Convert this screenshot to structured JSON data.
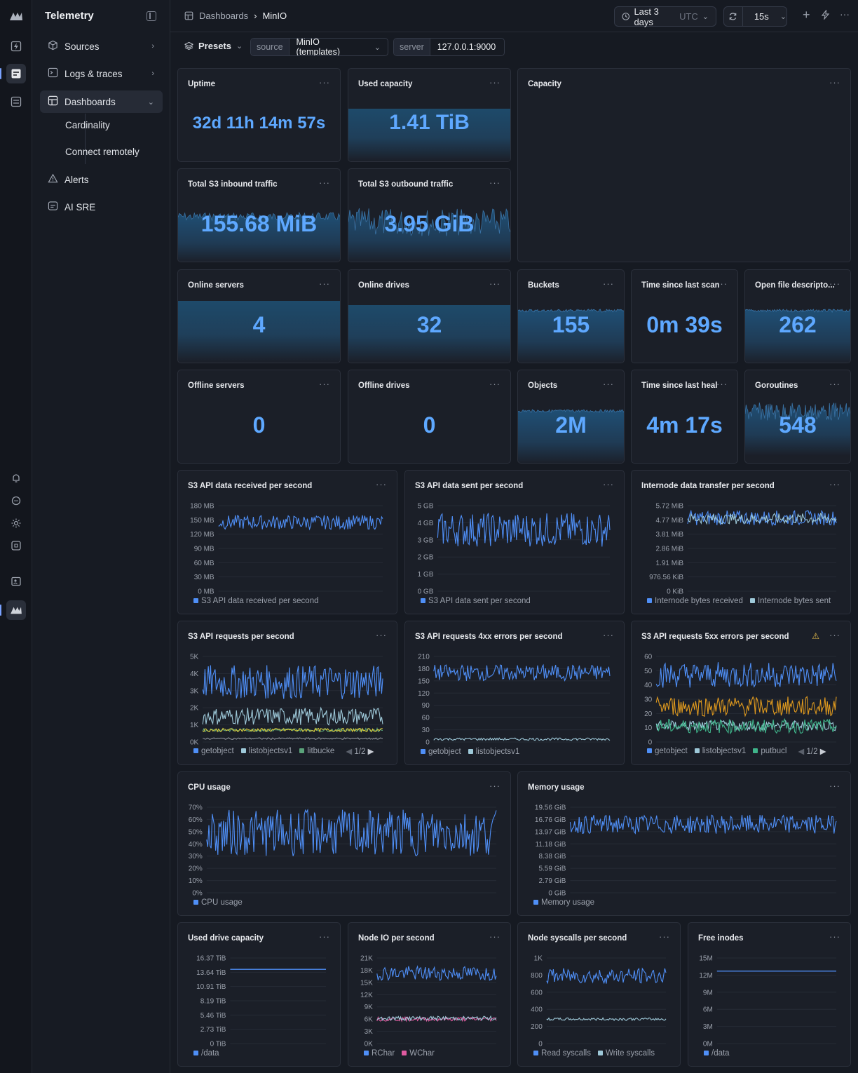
{
  "app": {
    "name": "Telemetry"
  },
  "rail": {
    "icons": [
      "bolt-icon",
      "logs-icon",
      "dashboard-icon",
      "bell-icon",
      "chat-icon",
      "sun-icon",
      "command-icon",
      "user-card-icon",
      "logo-icon"
    ]
  },
  "sidebar": {
    "items": [
      {
        "label": "Sources",
        "icon": "cube-icon"
      },
      {
        "label": "Logs & traces",
        "icon": "terminal-icon"
      },
      {
        "label": "Dashboards",
        "icon": "grid-icon"
      },
      {
        "label": "Alerts",
        "icon": "warning-icon"
      },
      {
        "label": "AI SRE",
        "icon": "chat-box-icon"
      }
    ],
    "dashboards_sub": [
      "Cardinality",
      "Connect remotely"
    ]
  },
  "topbar": {
    "breadcrumb_root": "Dashboards",
    "breadcrumb_current": "MinIO",
    "time_range": "Last 3 days",
    "timezone": "UTC",
    "refresh_interval": "15s"
  },
  "filters": {
    "presets_label": "Presets",
    "source_key": "source",
    "source_value": "MinIO (templates)",
    "server_key": "server",
    "server_value": "127.0.0.1:9000"
  },
  "stats": {
    "uptime": {
      "title": "Uptime",
      "value": "32d 11h 14m 57s"
    },
    "used_capacity": {
      "title": "Used capacity",
      "value": "1.41 TiB"
    },
    "capacity": {
      "title": "Capacity"
    },
    "s3_in": {
      "title": "Total S3 inbound traffic",
      "value": "155.68 MiB"
    },
    "s3_out": {
      "title": "Total S3 outbound traffic",
      "value": "3.95 GiB"
    },
    "online_servers": {
      "title": "Online servers",
      "value": "4"
    },
    "online_drives": {
      "title": "Online drives",
      "value": "32"
    },
    "buckets": {
      "title": "Buckets",
      "value": "155"
    },
    "last_scan": {
      "title": "Time since last scan",
      "value": "0m 39s"
    },
    "open_fd": {
      "title": "Open file descripto...",
      "value": "262"
    },
    "offline_servers": {
      "title": "Offline servers",
      "value": "0"
    },
    "offline_drives": {
      "title": "Offline drives",
      "value": "0"
    },
    "objects": {
      "title": "Objects",
      "value": "2M"
    },
    "last_heal": {
      "title": "Time since last heal",
      "value": "4m 17s"
    },
    "goroutines": {
      "title": "Goroutines",
      "value": "548"
    }
  },
  "chart_data": [
    {
      "id": "s3_recv",
      "type": "line",
      "title": "S3 API data received per second",
      "yticks": [
        "180 MB",
        "150 MB",
        "120 MB",
        "90 MB",
        "60 MB",
        "30 MB",
        "0 MB"
      ],
      "ylim": [
        0,
        180
      ],
      "series": [
        {
          "name": "S3 API data received per second",
          "color": "#4f8ff7",
          "range": [
            130,
            160
          ]
        }
      ]
    },
    {
      "id": "s3_sent",
      "type": "line",
      "title": "S3 API data sent per second",
      "yticks": [
        "5 GB",
        "4 GB",
        "3 GB",
        "2 GB",
        "1 GB",
        "0 GB"
      ],
      "ylim": [
        0,
        5
      ],
      "series": [
        {
          "name": "S3 API data sent per second",
          "color": "#4f8ff7",
          "range": [
            2.6,
            4.6
          ]
        }
      ]
    },
    {
      "id": "internode",
      "type": "line",
      "title": "Internode data transfer per second",
      "yticks": [
        "5.72 MiB",
        "4.77 MiB",
        "3.81 MiB",
        "2.86 MiB",
        "1.91 MiB",
        "976.56 KiB",
        "0 KiB"
      ],
      "ylim": [
        0,
        5.72
      ],
      "series": [
        {
          "name": "Internode bytes received",
          "color": "#4f8ff7",
          "range": [
            4.4,
            5.4
          ]
        },
        {
          "name": "Internode bytes sent",
          "color": "#9ec9d9",
          "range": [
            4.5,
            5.2
          ]
        }
      ]
    },
    {
      "id": "s3_req",
      "type": "line",
      "title": "S3 API requests per second",
      "yticks": [
        "5K",
        "4K",
        "3K",
        "2K",
        "1K",
        "0K"
      ],
      "ylim": [
        0,
        5
      ],
      "series": [
        {
          "name": "getobject",
          "color": "#4f8ff7",
          "range": [
            2.5,
            4.5
          ]
        },
        {
          "name": "listobjectsv1",
          "color": "#9ec9d9",
          "range": [
            1.0,
            2.0
          ]
        },
        {
          "name": "litbucke",
          "color": "#5aa37a",
          "range": [
            0.6,
            0.8
          ]
        },
        {
          "name": "",
          "color": "#d6c83a",
          "range": [
            0.6,
            0.8
          ]
        },
        {
          "name": "",
          "color": "#8a8f99",
          "range": [
            0.15,
            0.25
          ]
        }
      ],
      "page": "1/2"
    },
    {
      "id": "s3_4xx",
      "type": "line",
      "title": "S3 API requests 4xx errors per second",
      "yticks": [
        "210",
        "180",
        "150",
        "120",
        "90",
        "60",
        "30",
        "0"
      ],
      "ylim": [
        0,
        210
      ],
      "series": [
        {
          "name": "getobject",
          "color": "#4f8ff7",
          "range": [
            150,
            190
          ]
        },
        {
          "name": "listobjectsv1",
          "color": "#9ec9d9",
          "range": [
            4,
            10
          ]
        }
      ]
    },
    {
      "id": "s3_5xx",
      "type": "line",
      "title": "S3 API requests 5xx errors per second",
      "yticks": [
        "60",
        "50",
        "40",
        "30",
        "20",
        "10",
        "0"
      ],
      "ylim": [
        0,
        60
      ],
      "series": [
        {
          "name": "getobject",
          "color": "#4f8ff7",
          "range": [
            38,
            56
          ]
        },
        {
          "name": "listobjectsv1",
          "color": "#9ec9d9",
          "range": [
            8,
            15
          ]
        },
        {
          "name": "putbucl",
          "color": "#3fb48a",
          "range": [
            6,
            16
          ]
        },
        {
          "name": "",
          "color": "#e09a1e",
          "range": [
            18,
            32
          ]
        }
      ],
      "page": "1/2"
    },
    {
      "id": "cpu",
      "type": "line",
      "title": "CPU usage",
      "yticks": [
        "70%",
        "60%",
        "50%",
        "40%",
        "30%",
        "20%",
        "10%",
        "0%"
      ],
      "ylim": [
        0,
        70
      ],
      "series": [
        {
          "name": "CPU usage",
          "color": "#4f8ff7",
          "range": [
            30,
            68
          ]
        }
      ]
    },
    {
      "id": "mem",
      "type": "line",
      "title": "Memory usage",
      "yticks": [
        "19.56 GiB",
        "16.76 GiB",
        "13.97 GiB",
        "11.18 GiB",
        "8.38 GiB",
        "5.59 GiB",
        "2.79 GiB",
        "0 GiB"
      ],
      "ylim": [
        0,
        19.56
      ],
      "series": [
        {
          "name": "Memory usage",
          "color": "#4f8ff7",
          "range": [
            13.5,
            17.8
          ]
        }
      ]
    },
    {
      "id": "drive_cap",
      "type": "line",
      "title": "Used drive capacity",
      "yticks": [
        "16.37 TiB",
        "13.64 TiB",
        "10.91 TiB",
        "8.19 TiB",
        "5.46 TiB",
        "2.73 TiB",
        "0 TiB"
      ],
      "ylim": [
        0,
        16.37
      ],
      "series": [
        {
          "name": "/data",
          "color": "#4f8ff7",
          "range": [
            14.2,
            14.2
          ]
        }
      ]
    },
    {
      "id": "node_io",
      "type": "line",
      "title": "Node IO per second",
      "yticks": [
        "21K",
        "18K",
        "15K",
        "12K",
        "9K",
        "6K",
        "3K",
        "0K"
      ],
      "ylim": [
        0,
        21
      ],
      "series": [
        {
          "name": "RChar",
          "color": "#4f8ff7",
          "range": [
            15.5,
            19
          ]
        },
        {
          "name": "WChar",
          "color": "#e05aa0",
          "range": [
            5.5,
            6.5
          ]
        },
        {
          "name": "",
          "color": "#9ec9d9",
          "range": [
            5.7,
            6.7
          ]
        }
      ]
    },
    {
      "id": "syscalls",
      "type": "line",
      "title": "Node syscalls per second",
      "yticks": [
        "1K",
        "800",
        "600",
        "400",
        "200",
        "0"
      ],
      "ylim": [
        0,
        1000
      ],
      "series": [
        {
          "name": "Read syscalls",
          "color": "#4f8ff7",
          "range": [
            700,
            880
          ]
        },
        {
          "name": "Write syscalls",
          "color": "#9ec9d9",
          "range": [
            270,
            300
          ]
        }
      ]
    },
    {
      "id": "inodes",
      "type": "line",
      "title": "Free inodes",
      "yticks": [
        "15M",
        "12M",
        "9M",
        "6M",
        "3M",
        "0M"
      ],
      "ylim": [
        0,
        15
      ],
      "series": [
        {
          "name": "/data",
          "color": "#4f8ff7",
          "range": [
            12.7,
            12.7
          ]
        }
      ]
    }
  ]
}
